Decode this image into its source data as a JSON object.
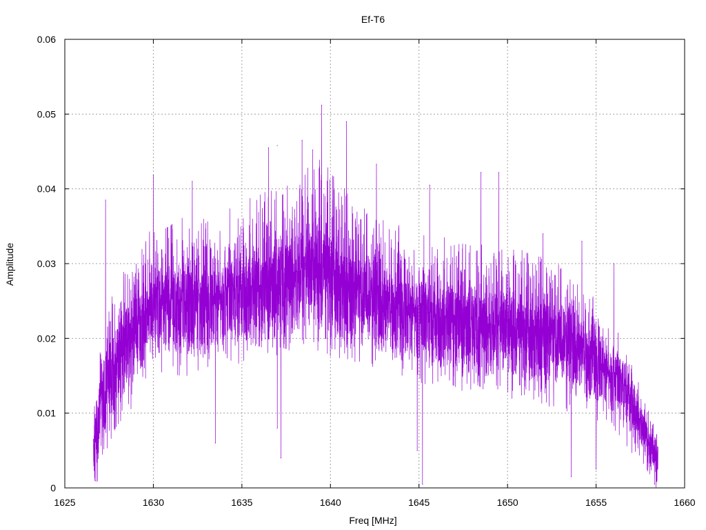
{
  "chart_data": {
    "type": "line",
    "title": "Ef-T6",
    "xlabel": "Freq [MHz]",
    "ylabel": "Amplitude",
    "xlim": [
      1625,
      1660
    ],
    "ylim": [
      0,
      0.06
    ],
    "xticks": [
      "1625",
      "1630",
      "1635",
      "1640",
      "1645",
      "1650",
      "1655",
      "1660"
    ],
    "yticks": [
      "0",
      "0.01",
      "0.02",
      "0.03",
      "0.04",
      "0.05",
      "0.06"
    ],
    "grid": true,
    "legend": "none",
    "series": [
      {
        "color": "#9400D3",
        "x_range": [
          1626.6,
          1658.5
        ],
        "envelope": {
          "x": [
            1626.6,
            1626.8,
            1627.0,
            1627.5,
            1628.0,
            1628.5,
            1629.0,
            1629.5,
            1630.0,
            1631.0,
            1632.0,
            1633.0,
            1634.0,
            1635.0,
            1636.0,
            1637.0,
            1638.0,
            1639.0,
            1639.5,
            1640.0,
            1641.0,
            1642.0,
            1643.0,
            1644.0,
            1645.0,
            1646.0,
            1647.0,
            1648.0,
            1649.0,
            1650.0,
            1651.0,
            1652.0,
            1653.0,
            1654.0,
            1655.0,
            1656.0,
            1656.5,
            1657.0,
            1657.5,
            1658.0,
            1658.5
          ],
          "low": [
            0.003,
            0.002,
            0.005,
            0.008,
            0.011,
            0.013,
            0.015,
            0.016,
            0.017,
            0.018,
            0.018,
            0.019,
            0.02,
            0.02,
            0.021,
            0.021,
            0.022,
            0.022,
            0.022,
            0.021,
            0.02,
            0.019,
            0.018,
            0.018,
            0.017,
            0.017,
            0.016,
            0.016,
            0.016,
            0.015,
            0.015,
            0.014,
            0.013,
            0.012,
            0.011,
            0.01,
            0.009,
            0.007,
            0.005,
            0.003,
            0.001
          ],
          "mid": [
            0.006,
            0.007,
            0.012,
            0.015,
            0.018,
            0.02,
            0.022,
            0.023,
            0.024,
            0.025,
            0.025,
            0.025,
            0.026,
            0.027,
            0.027,
            0.028,
            0.029,
            0.03,
            0.03,
            0.029,
            0.027,
            0.026,
            0.025,
            0.024,
            0.024,
            0.023,
            0.023,
            0.022,
            0.022,
            0.022,
            0.021,
            0.021,
            0.02,
            0.019,
            0.017,
            0.015,
            0.014,
            0.012,
            0.009,
            0.006,
            0.004
          ],
          "high": [
            0.009,
            0.012,
            0.018,
            0.022,
            0.025,
            0.027,
            0.029,
            0.031,
            0.032,
            0.033,
            0.033,
            0.033,
            0.034,
            0.035,
            0.036,
            0.037,
            0.038,
            0.04,
            0.04,
            0.039,
            0.036,
            0.034,
            0.033,
            0.032,
            0.031,
            0.031,
            0.03,
            0.03,
            0.03,
            0.029,
            0.029,
            0.028,
            0.027,
            0.025,
            0.023,
            0.02,
            0.018,
            0.016,
            0.012,
            0.009,
            0.006
          ]
        },
        "peaks": [
          {
            "x": 1627.3,
            "y": 0.0385
          },
          {
            "x": 1630.0,
            "y": 0.0418
          },
          {
            "x": 1632.2,
            "y": 0.041
          },
          {
            "x": 1636.5,
            "y": 0.0455
          },
          {
            "x": 1637.0,
            "y": 0.0458
          },
          {
            "x": 1638.4,
            "y": 0.0465
          },
          {
            "x": 1639.0,
            "y": 0.0452
          },
          {
            "x": 1639.5,
            "y": 0.0512
          },
          {
            "x": 1640.9,
            "y": 0.049
          },
          {
            "x": 1642.6,
            "y": 0.0433
          },
          {
            "x": 1645.6,
            "y": 0.0405
          },
          {
            "x": 1648.5,
            "y": 0.0422
          },
          {
            "x": 1649.5,
            "y": 0.0422
          },
          {
            "x": 1652.0,
            "y": 0.034
          },
          {
            "x": 1654.2,
            "y": 0.033
          },
          {
            "x": 1656.0,
            "y": 0.03
          }
        ],
        "dips": [
          {
            "x": 1626.7,
            "y": 0.001
          },
          {
            "x": 1633.5,
            "y": 0.006
          },
          {
            "x": 1637.0,
            "y": 0.008
          },
          {
            "x": 1637.2,
            "y": 0.004
          },
          {
            "x": 1644.9,
            "y": 0.005
          },
          {
            "x": 1645.2,
            "y": 0.0005
          },
          {
            "x": 1653.6,
            "y": 0.0015
          },
          {
            "x": 1655.0,
            "y": 0.0025
          },
          {
            "x": 1658.3,
            "y": 0.0005
          }
        ]
      }
    ]
  }
}
